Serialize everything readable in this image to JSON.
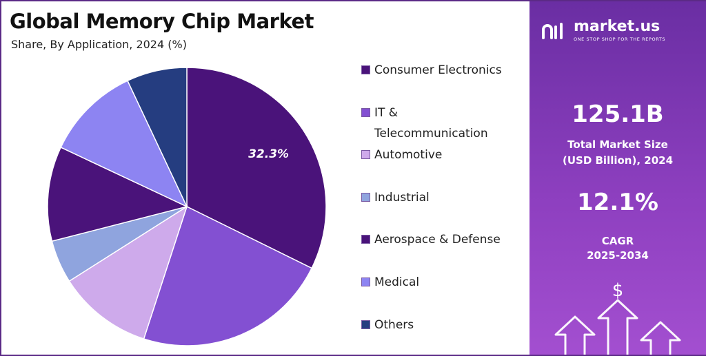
{
  "chart_data": {
    "type": "pie",
    "title": "Global Memory Chip Market",
    "subtitle": "Share, By Application, 2024 (%)",
    "slices": [
      {
        "label": "Consumer Electronics",
        "value": 32.3,
        "color": "#4a137a",
        "value_label": "32.3%"
      },
      {
        "label": "IT & Telecommunication",
        "value": 22.7,
        "color": "#8350d2"
      },
      {
        "label": "Automotive",
        "value": 11.0,
        "color": "#ceaaeb"
      },
      {
        "label": "Industrial",
        "value": 5.0,
        "color": "#8fa4de"
      },
      {
        "label": "Aerospace & Defense",
        "value": 11.0,
        "color": "#4a137a"
      },
      {
        "label": "Medical",
        "value": 11.0,
        "color": "#8d84f2"
      },
      {
        "label": "Others",
        "value": 7.0,
        "color": "#253d80"
      }
    ],
    "legend_position": "right",
    "start_angle_deg": 0,
    "direction": "clockwise"
  },
  "legend": {
    "items": [
      {
        "lines": [
          "Consumer Electronics"
        ],
        "color": "#4a137a"
      },
      {
        "lines": [
          "IT &",
          "Telecommunication"
        ],
        "color": "#8350d2"
      },
      {
        "lines": [
          "Automotive"
        ],
        "color": "#ceaaeb"
      },
      {
        "lines": [
          "Industrial"
        ],
        "color": "#8fa4de"
      },
      {
        "lines": [
          "Aerospace & Defense"
        ],
        "color": "#4a137a"
      },
      {
        "lines": [
          "Medical"
        ],
        "color": "#8d84f2"
      },
      {
        "lines": [
          "Others"
        ],
        "color": "#253d80"
      }
    ]
  },
  "sidebar": {
    "brand": "market.us",
    "tagline": "ONE STOP SHOP FOR THE REPORTS",
    "market_size_value": "125.1B",
    "market_size_label_1": "Total Market Size",
    "market_size_label_2": "(USD Billion), 2024",
    "cagr_value": "12.1%",
    "cagr_label_1": "CAGR",
    "cagr_label_2": "2025-2034",
    "currency_symbol": "$",
    "logo_icon": "market-us-logo-icon",
    "arrows_icon": "growth-arrows-icon"
  }
}
